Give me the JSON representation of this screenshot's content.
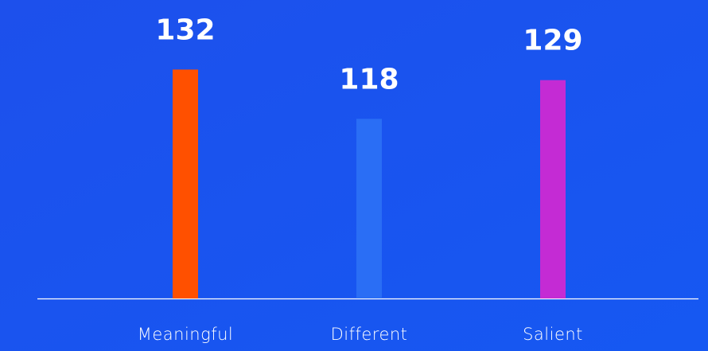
{
  "chart_data": {
    "type": "bar",
    "categories": [
      "Meaningful",
      "Different",
      "Salient"
    ],
    "values": [
      132,
      118,
      129
    ],
    "colors": [
      "#ff5000",
      "#2a6ef5",
      "#c42bd4"
    ],
    "ylim": [
      67,
      140
    ]
  }
}
